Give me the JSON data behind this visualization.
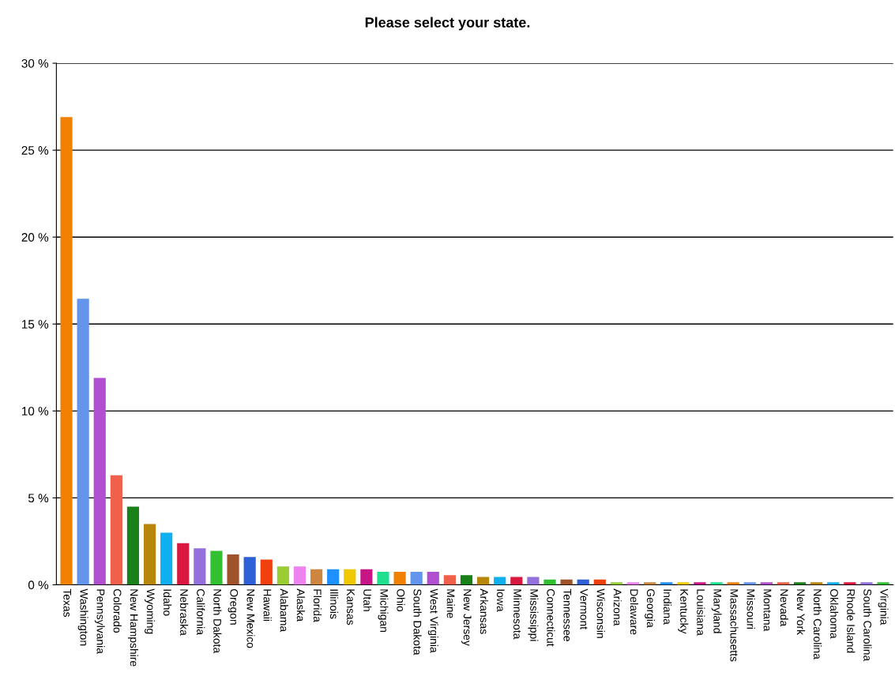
{
  "chart_data": {
    "type": "bar",
    "title": "Please select your state.",
    "categories": [
      "Texas",
      "Washington",
      "Pennsylvania",
      "Colorado",
      "New Hampshire",
      "Wyoming",
      "Idaho",
      "Nebraska",
      "California",
      "North Dakota",
      "Oregon",
      "New Mexico",
      "Hawaii",
      "Alabama",
      "Alaska",
      "Florida",
      "Illinois",
      "Kansas",
      "Utah",
      "Michigan",
      "Ohio",
      "South Dakota",
      "West Virginia",
      "Maine",
      "New Jersey",
      "Arkansas",
      "Iowa",
      "Minnesota",
      "Mississippi",
      "Connecticut",
      "Tennessee",
      "Vermont",
      "Wisconsin",
      "Arizona",
      "Delaware",
      "Georgia",
      "Indiana",
      "Kentucky",
      "Louisiana",
      "Maryland",
      "Massachusetts",
      "Missouri",
      "Montana",
      "Nevada",
      "New York",
      "North Carolina",
      "Oklahoma",
      "Rhode Island",
      "South Carolina",
      "Virginia"
    ],
    "values": [
      26.9,
      16.45,
      11.9,
      6.3,
      4.5,
      3.5,
      3.0,
      2.4,
      2.1,
      1.95,
      1.75,
      1.6,
      1.45,
      1.05,
      1.05,
      0.9,
      0.9,
      0.9,
      0.9,
      0.75,
      0.75,
      0.75,
      0.75,
      0.55,
      0.55,
      0.45,
      0.45,
      0.45,
      0.45,
      0.3,
      0.3,
      0.3,
      0.3,
      0.15,
      0.15,
      0.15,
      0.15,
      0.15,
      0.15,
      0.15,
      0.15,
      0.15,
      0.15,
      0.15,
      0.15,
      0.15,
      0.15,
      0.15,
      0.15,
      0.15
    ],
    "colors": [
      "#f08000",
      "#6495ed",
      "#b050d0",
      "#f0604a",
      "#1a801a",
      "#b8860b",
      "#10b0f0",
      "#d81840",
      "#9370db",
      "#32c032",
      "#a0522d",
      "#3060d8",
      "#f04010",
      "#9acd32",
      "#ee82ee",
      "#cd853f",
      "#1e90ff",
      "#f0c800",
      "#c71585",
      "#20e090",
      "#f08000",
      "#6495ed",
      "#b050d0",
      "#f0604a",
      "#1a801a",
      "#b8860b",
      "#10b0f0",
      "#d81840",
      "#9370db",
      "#32c032",
      "#a0522d",
      "#3060d8",
      "#f04010",
      "#9acd32",
      "#ee82ee",
      "#cd853f",
      "#1e90ff",
      "#f0c800",
      "#c71585",
      "#20e090",
      "#f08000",
      "#6495ed",
      "#b050d0",
      "#f0604a",
      "#1a801a",
      "#b8860b",
      "#10b0f0",
      "#d81840",
      "#9370db",
      "#32c032"
    ],
    "ylim": [
      0,
      30
    ],
    "yticks": [
      {
        "value": 0,
        "label": "0 %"
      },
      {
        "value": 5,
        "label": "5 %"
      },
      {
        "value": 10,
        "label": "10 %"
      },
      {
        "value": 15,
        "label": "15 %"
      },
      {
        "value": 20,
        "label": "20 %"
      },
      {
        "value": 25,
        "label": "25 %"
      },
      {
        "value": 30,
        "label": "30 %"
      }
    ],
    "grid": "y",
    "legend": false
  }
}
